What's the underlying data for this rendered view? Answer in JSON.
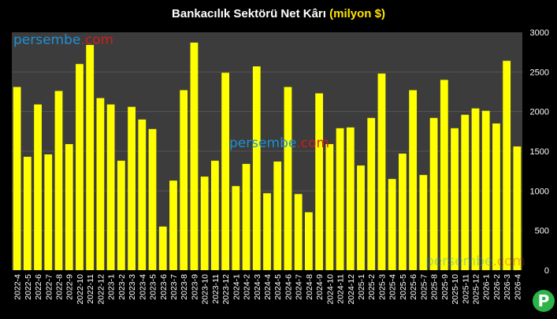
{
  "title": {
    "main": "Bankacılık Sektörü Net Kârı",
    "unit": "(milyon $)"
  },
  "watermark": {
    "part1": "persembe",
    "part2": ".com"
  },
  "logo": {
    "letter": "P"
  },
  "colors": {
    "bar": "#ffff00",
    "plot_bg": "#3c3c3c",
    "grid": "#555555",
    "title_accent": "#ffe600",
    "background": "#000000"
  },
  "chart_data": {
    "type": "bar",
    "title": "Bankacılık Sektörü Net Kârı (milyon $)",
    "xlabel": "",
    "ylabel": "",
    "ylim": [
      0,
      3000
    ],
    "yticks": [
      0,
      500,
      1000,
      1500,
      2000,
      2500,
      3000
    ],
    "grid": true,
    "categories": [
      "2022-4",
      "2022-5",
      "2022-6",
      "2022-7",
      "2022-8",
      "2022-9",
      "2022-10",
      "2022-11",
      "2022-12",
      "2023-1",
      "2023-2",
      "2023-3",
      "2023-4",
      "2023-5",
      "2023-6",
      "2023-7",
      "2023-8",
      "2023-9",
      "2023-10",
      "2023-11",
      "2023-12",
      "2024-1",
      "2024-2",
      "2024-3",
      "2024-4",
      "2024-5",
      "2024-6",
      "2024-7",
      "2024-8",
      "2024-9",
      "2024-10",
      "2024-11",
      "2024-12",
      "2025-1",
      "2025-2",
      "2025-3",
      "2025-4",
      "2025-5",
      "2025-6",
      "2025-7",
      "2025-8",
      "2025-9",
      "2025-10",
      "2025-11",
      "2025-12",
      "2026-1",
      "2026-2",
      "2026-3",
      "2026-4"
    ],
    "values": [
      2310,
      1430,
      2090,
      1460,
      2260,
      1590,
      2600,
      2840,
      2170,
      2090,
      1380,
      2060,
      1900,
      1780,
      550,
      1130,
      2270,
      2870,
      1180,
      1380,
      2490,
      1060,
      1340,
      2570,
      970,
      1370,
      2310,
      960,
      730,
      2230,
      1590,
      1790,
      1800,
      1320,
      1920,
      2480,
      1150,
      1470,
      2270,
      1200,
      1920,
      2400,
      1790,
      1960,
      2040,
      2010,
      1850,
      2640,
      1560
    ]
  }
}
